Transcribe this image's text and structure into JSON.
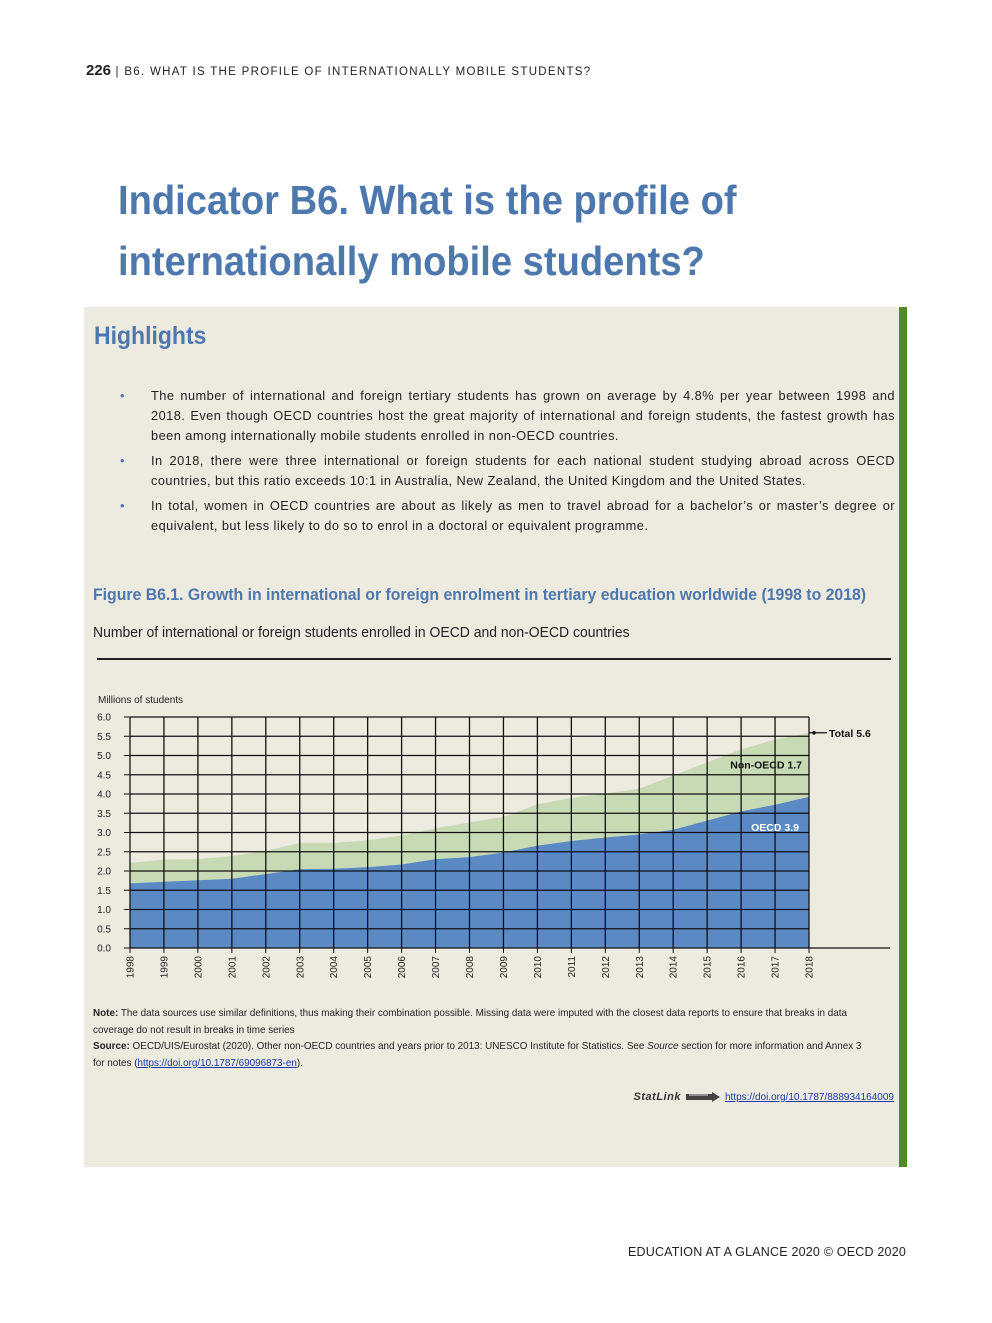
{
  "header": {
    "page_number": "226",
    "separator": "|",
    "running_title": "B6. WHAT IS THE PROFILE OF INTERNATIONALLY MOBILE STUDENTS?"
  },
  "title_line1": "Indicator B6. What is the profile of",
  "title_line2": "internationally mobile students?",
  "highlights": {
    "heading": "Highlights",
    "bullet_glyph": "•",
    "items": [
      "The number of international and foreign tertiary students has grown on average by 4.8% per year between 1998 and 2018. Even though OECD countries host the great majority of international and foreign students, the fastest growth has been among internationally mobile students enrolled in non-OECD countries.",
      "In 2018, there were three international or foreign students for each national student studying abroad across OECD countries, but this ratio exceeds 10:1 in Australia, New Zealand, the United Kingdom and the United States.",
      "In total, women in OECD countries are about as likely as men to travel abroad for a bachelor’s or master’s degree or equivalent, but less likely to do so to enrol in a doctoral or equivalent programme."
    ]
  },
  "figure": {
    "title": "Figure B6.1. Growth in international or foreign enrolment in tertiary education worldwide (1998 to 2018)",
    "subtitle": "Number of international or foreign students enrolled in OECD and non-OECD countries"
  },
  "chart_data": {
    "type": "area",
    "stacked": true,
    "ylabel": "Millions of students",
    "ylim": [
      0,
      6
    ],
    "yticks": [
      "0.0",
      "0.5",
      "1.0",
      "1.5",
      "2.0",
      "2.5",
      "3.0",
      "3.5",
      "4.0",
      "4.5",
      "5.0",
      "5.5",
      "6.0"
    ],
    "grid": true,
    "x": [
      "1998",
      "1999",
      "2000",
      "2001",
      "2002",
      "2003",
      "2004",
      "2005",
      "2006",
      "2007",
      "2008",
      "2009",
      "2010",
      "2011",
      "2012",
      "2013",
      "2014",
      "2015",
      "2016",
      "2017",
      "2018"
    ],
    "series": [
      {
        "name": "OECD",
        "color": "#5b89c4",
        "values": [
          1.68,
          1.72,
          1.76,
          1.8,
          1.92,
          2.05,
          2.06,
          2.1,
          2.17,
          2.31,
          2.36,
          2.48,
          2.66,
          2.78,
          2.87,
          2.95,
          3.07,
          3.31,
          3.55,
          3.72,
          3.93
        ]
      },
      {
        "name": "Non-OECD",
        "color": "#c7dab4",
        "values": [
          0.53,
          0.58,
          0.55,
          0.59,
          0.6,
          0.68,
          0.67,
          0.7,
          0.75,
          0.8,
          0.9,
          0.93,
          1.07,
          1.12,
          1.14,
          1.19,
          1.41,
          1.51,
          1.61,
          1.69,
          1.66
        ]
      }
    ],
    "labels": {
      "total": "Total 5.6",
      "non_oecd": "Non-OECD 1.7",
      "oecd": "OECD 3.9"
    }
  },
  "note": {
    "note_label": "Note:",
    "note_text": " The data sources use similar definitions, thus making their combination possible. Missing data were imputed with the closest data reports to ensure that breaks in data coverage do not result in breaks in time series",
    "source_label": "Source:",
    "source_text_a": " OECD/UIS/Eurostat (2020). Other non-OECD countries and years prior to 2013: UNESCO Institute for Statistics. See ",
    "source_italic": "Source",
    "source_text_b": " section for more information and Annex 3 for notes (",
    "source_link": "https://doi.org/10.1787/69096873-en",
    "source_text_c": ")."
  },
  "statlink": {
    "logo_text": "StatLink",
    "url": "https://doi.org/10.1787/888934164009"
  },
  "footer": "EDUCATION AT A GLANCE 2020 © OECD 2020"
}
